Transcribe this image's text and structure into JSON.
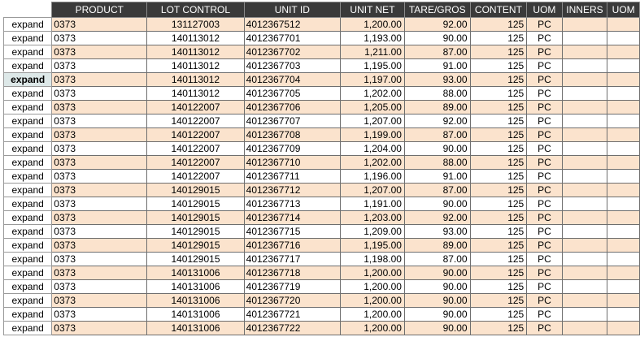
{
  "table": {
    "columns": [
      "PRODUCT",
      "LOT CONTROL",
      "UNIT ID",
      "UNIT NET",
      "TARE/GROS",
      "CONTENT",
      "UOM",
      "INNERS",
      "UOM"
    ],
    "expand_label": "expand",
    "active_expand_row": 4,
    "rows": [
      {
        "product": "0373",
        "lot": "131127003",
        "unit_id": "4012367512",
        "net": "1,200.00",
        "tare": "92.00",
        "content": "125",
        "uom": "PC",
        "inners": "",
        "uom2": ""
      },
      {
        "product": "0373",
        "lot": "140113012",
        "unit_id": "4012367701",
        "net": "1,193.00",
        "tare": "90.00",
        "content": "125",
        "uom": "PC",
        "inners": "",
        "uom2": ""
      },
      {
        "product": "0373",
        "lot": "140113012",
        "unit_id": "4012367702",
        "net": "1,211.00",
        "tare": "87.00",
        "content": "125",
        "uom": "PC",
        "inners": "",
        "uom2": ""
      },
      {
        "product": "0373",
        "lot": "140113012",
        "unit_id": "4012367703",
        "net": "1,195.00",
        "tare": "91.00",
        "content": "125",
        "uom": "PC",
        "inners": "",
        "uom2": ""
      },
      {
        "product": "0373",
        "lot": "140113012",
        "unit_id": "4012367704",
        "net": "1,197.00",
        "tare": "93.00",
        "content": "125",
        "uom": "PC",
        "inners": "",
        "uom2": ""
      },
      {
        "product": "0373",
        "lot": "140113012",
        "unit_id": "4012367705",
        "net": "1,202.00",
        "tare": "88.00",
        "content": "125",
        "uom": "PC",
        "inners": "",
        "uom2": ""
      },
      {
        "product": "0373",
        "lot": "140122007",
        "unit_id": "4012367706",
        "net": "1,205.00",
        "tare": "89.00",
        "content": "125",
        "uom": "PC",
        "inners": "",
        "uom2": ""
      },
      {
        "product": "0373",
        "lot": "140122007",
        "unit_id": "4012367707",
        "net": "1,207.00",
        "tare": "92.00",
        "content": "125",
        "uom": "PC",
        "inners": "",
        "uom2": ""
      },
      {
        "product": "0373",
        "lot": "140122007",
        "unit_id": "4012367708",
        "net": "1,199.00",
        "tare": "87.00",
        "content": "125",
        "uom": "PC",
        "inners": "",
        "uom2": ""
      },
      {
        "product": "0373",
        "lot": "140122007",
        "unit_id": "4012367709",
        "net": "1,204.00",
        "tare": "90.00",
        "content": "125",
        "uom": "PC",
        "inners": "",
        "uom2": ""
      },
      {
        "product": "0373",
        "lot": "140122007",
        "unit_id": "4012367710",
        "net": "1,202.00",
        "tare": "88.00",
        "content": "125",
        "uom": "PC",
        "inners": "",
        "uom2": ""
      },
      {
        "product": "0373",
        "lot": "140122007",
        "unit_id": "4012367711",
        "net": "1,196.00",
        "tare": "91.00",
        "content": "125",
        "uom": "PC",
        "inners": "",
        "uom2": ""
      },
      {
        "product": "0373",
        "lot": "140129015",
        "unit_id": "4012367712",
        "net": "1,207.00",
        "tare": "87.00",
        "content": "125",
        "uom": "PC",
        "inners": "",
        "uom2": ""
      },
      {
        "product": "0373",
        "lot": "140129015",
        "unit_id": "4012367713",
        "net": "1,191.00",
        "tare": "90.00",
        "content": "125",
        "uom": "PC",
        "inners": "",
        "uom2": ""
      },
      {
        "product": "0373",
        "lot": "140129015",
        "unit_id": "4012367714",
        "net": "1,203.00",
        "tare": "92.00",
        "content": "125",
        "uom": "PC",
        "inners": "",
        "uom2": ""
      },
      {
        "product": "0373",
        "lot": "140129015",
        "unit_id": "4012367715",
        "net": "1,209.00",
        "tare": "93.00",
        "content": "125",
        "uom": "PC",
        "inners": "",
        "uom2": ""
      },
      {
        "product": "0373",
        "lot": "140129015",
        "unit_id": "4012367716",
        "net": "1,195.00",
        "tare": "89.00",
        "content": "125",
        "uom": "PC",
        "inners": "",
        "uom2": ""
      },
      {
        "product": "0373",
        "lot": "140129015",
        "unit_id": "4012367717",
        "net": "1,198.00",
        "tare": "87.00",
        "content": "125",
        "uom": "PC",
        "inners": "",
        "uom2": ""
      },
      {
        "product": "0373",
        "lot": "140131006",
        "unit_id": "4012367718",
        "net": "1,200.00",
        "tare": "90.00",
        "content": "125",
        "uom": "PC",
        "inners": "",
        "uom2": ""
      },
      {
        "product": "0373",
        "lot": "140131006",
        "unit_id": "4012367719",
        "net": "1,200.00",
        "tare": "90.00",
        "content": "125",
        "uom": "PC",
        "inners": "",
        "uom2": ""
      },
      {
        "product": "0373",
        "lot": "140131006",
        "unit_id": "4012367720",
        "net": "1,200.00",
        "tare": "90.00",
        "content": "125",
        "uom": "PC",
        "inners": "",
        "uom2": ""
      },
      {
        "product": "0373",
        "lot": "140131006",
        "unit_id": "4012367721",
        "net": "1,200.00",
        "tare": "90.00",
        "content": "125",
        "uom": "PC",
        "inners": "",
        "uom2": ""
      },
      {
        "product": "0373",
        "lot": "140131006",
        "unit_id": "4012367722",
        "net": "1,200.00",
        "tare": "90.00",
        "content": "125",
        "uom": "PC",
        "inners": "",
        "uom2": ""
      }
    ]
  },
  "colors": {
    "header_bg": "#3a3a3a",
    "header_text": "#ffffff",
    "row_alt_bg": "#fbe3cd",
    "row_plain_bg": "#ffffff",
    "active_expand_bg": "#dde8e8"
  }
}
